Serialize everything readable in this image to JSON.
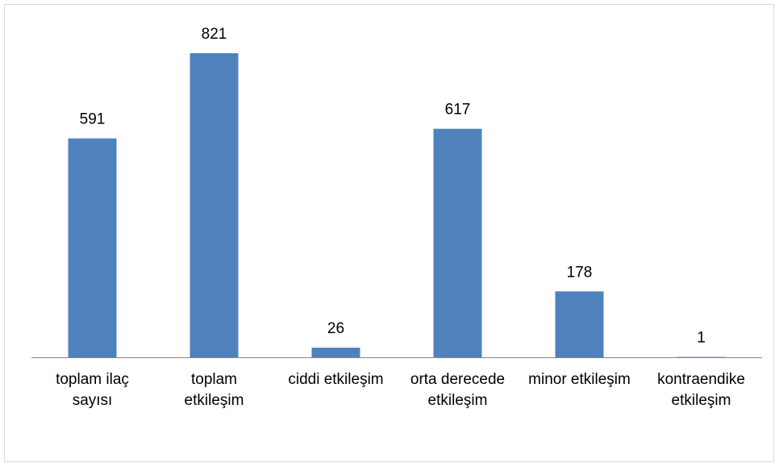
{
  "chart_data": {
    "type": "bar",
    "categories": [
      "toplam ilaç sayısı",
      "toplam etkileşim",
      "ciddi etkileşim",
      "orta derecede etkileşim",
      "minor etkileşim",
      "kontraendike etkileşim"
    ],
    "values": [
      591,
      821,
      26,
      617,
      178,
      1
    ],
    "color": "#4f81bd"
  }
}
